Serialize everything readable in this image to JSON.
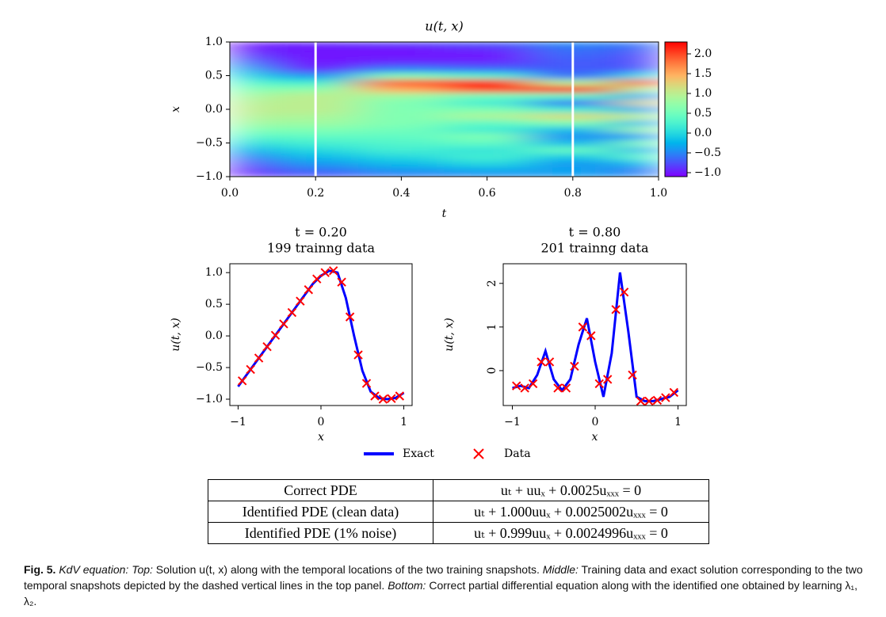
{
  "chart_data": [
    {
      "type": "heatmap",
      "title": "u(t, x)",
      "x_label": "t",
      "y_label": "x",
      "x": [
        0,
        0.2,
        0.4,
        0.6,
        0.8,
        1.0
      ],
      "y": [
        -1,
        -0.9,
        -0.8,
        -0.7,
        -0.6,
        -0.5,
        -0.4,
        -0.3,
        -0.2,
        -0.1,
        0,
        0.1,
        0.2,
        0.3,
        0.4,
        0.5,
        0.6,
        0.7,
        0.8,
        0.9,
        1
      ],
      "z": [
        [
          -1,
          -0.95,
          -0.81,
          -0.59,
          -0.31,
          0,
          0.31,
          0.59,
          0.81,
          0.95,
          1,
          0.95,
          0.81,
          0.59,
          0.31,
          0,
          -0.31,
          -0.59,
          -0.81,
          -0.95,
          -1
        ],
        [
          -0.8,
          -0.6,
          -0.4,
          -0.2,
          0,
          0.2,
          0.4,
          0.6,
          0.8,
          0.9,
          1.0,
          1.0,
          1.0,
          0.7,
          0.2,
          -0.4,
          -0.9,
          -1,
          -1,
          -1,
          -0.9
        ],
        [
          -0.6,
          -0.4,
          -0.2,
          0,
          0.2,
          0.3,
          0.4,
          0.5,
          0.6,
          0.6,
          0.6,
          0.6,
          0.8,
          1.5,
          1.9,
          0.6,
          -0.5,
          -0.9,
          -1,
          -1,
          -0.8
        ],
        [
          -0.5,
          -0.3,
          0,
          0.2,
          0.1,
          0.4,
          0.6,
          0.2,
          0.4,
          0.9,
          0.6,
          0.2,
          0.5,
          2.0,
          2.2,
          0.3,
          -0.6,
          -0.9,
          -1,
          -0.9,
          -0.7
        ],
        [
          -0.4,
          -0.35,
          -0.4,
          -0.1,
          0.45,
          -0.2,
          -0.45,
          -0.2,
          0.6,
          1.2,
          0.2,
          -0.6,
          0.4,
          2.25,
          0.9,
          -0.6,
          -0.7,
          -0.7,
          -0.65,
          -0.6,
          -0.45
        ],
        [
          -0.5,
          -0.6,
          -0.2,
          0.4,
          -0.3,
          0.6,
          -0.4,
          0.8,
          -0.3,
          0.9,
          -0.4,
          1.2,
          -0.4,
          0.8,
          2.3,
          0.1,
          -0.7,
          -0.8,
          -0.8,
          -0.7,
          -0.6
        ]
      ],
      "xlim": [
        0,
        1
      ],
      "ylim": [
        -1,
        1
      ],
      "xticks": [
        {
          "value": 0,
          "label": "0.0"
        },
        {
          "value": 0.2,
          "label": "0.2"
        },
        {
          "value": 0.4,
          "label": "0.4"
        },
        {
          "value": 0.6,
          "label": "0.6"
        },
        {
          "value": 0.8,
          "label": "0.8"
        },
        {
          "value": 1,
          "label": "1.0"
        }
      ],
      "yticks": [
        {
          "value": -1,
          "label": "−1.0"
        },
        {
          "value": -0.5,
          "label": "−0.5"
        },
        {
          "value": 0,
          "label": "0.0"
        },
        {
          "value": 0.5,
          "label": "0.5"
        },
        {
          "value": 1,
          "label": "1.0"
        }
      ],
      "colormap": "rainbow",
      "clim": [
        -1.1,
        2.3
      ],
      "colorbar_ticks": [
        {
          "value": -1,
          "label": "−1.0"
        },
        {
          "value": -0.5,
          "label": "−0.5"
        },
        {
          "value": 0,
          "label": "0.0"
        },
        {
          "value": 0.5,
          "label": "0.5"
        },
        {
          "value": 1,
          "label": "1.0"
        },
        {
          "value": 1.5,
          "label": "1.5"
        },
        {
          "value": 2,
          "label": "2.0"
        }
      ],
      "vlines": [
        0.2,
        0.8
      ],
      "vline_color": "#ffffff"
    },
    {
      "type": "line",
      "title": "t = 0.20",
      "subtitle": "199 trainng data",
      "x_label": "x",
      "y_label": "u(t, x)",
      "x": [
        -1,
        -0.9,
        -0.8,
        -0.7,
        -0.6,
        -0.5,
        -0.4,
        -0.3,
        -0.2,
        -0.1,
        0,
        0.1,
        0.2,
        0.3,
        0.4,
        0.5,
        0.6,
        0.7,
        0.8,
        0.9,
        1
      ],
      "series": [
        {
          "name": "Exact",
          "color": "#0000ff",
          "values": [
            -0.8,
            -0.62,
            -0.44,
            -0.26,
            -0.08,
            0.1,
            0.28,
            0.46,
            0.64,
            0.82,
            0.95,
            1.03,
            1.0,
            0.6,
            0.0,
            -0.55,
            -0.88,
            -0.98,
            -1.0,
            -0.98,
            -0.9
          ]
        },
        {
          "name": "Data",
          "color": "#ff0000",
          "marker": "x",
          "x": [
            -0.95,
            -0.85,
            -0.75,
            -0.65,
            -0.55,
            -0.45,
            -0.35,
            -0.25,
            -0.15,
            -0.05,
            0.05,
            0.15,
            0.25,
            0.35,
            0.45,
            0.55,
            0.65,
            0.75,
            0.85,
            0.95
          ],
          "values": [
            -0.71,
            -0.53,
            -0.35,
            -0.17,
            0.01,
            0.19,
            0.37,
            0.55,
            0.73,
            0.9,
            1.0,
            1.03,
            0.85,
            0.3,
            -0.3,
            -0.75,
            -0.95,
            -1.0,
            -0.99,
            -0.95
          ]
        }
      ],
      "xlim": [
        -1.1,
        1.1
      ],
      "ylim": [
        -1.1,
        1.14
      ],
      "xticks": [
        {
          "value": -1,
          "label": "−1"
        },
        0,
        1
      ],
      "yticks": [
        {
          "value": -1,
          "label": "−1.0"
        },
        {
          "value": -0.5,
          "label": "−0.5"
        },
        {
          "value": 0,
          "label": "0.0"
        },
        {
          "value": 0.5,
          "label": "0.5"
        },
        {
          "value": 1,
          "label": "1.0"
        }
      ],
      "legend": "bottom"
    },
    {
      "type": "line",
      "title": "t = 0.80",
      "subtitle": "201 trainng data",
      "x_label": "x",
      "y_label": "u(t, x)",
      "x": [
        -1,
        -0.9,
        -0.8,
        -0.7,
        -0.6,
        -0.5,
        -0.4,
        -0.3,
        -0.2,
        -0.1,
        0,
        0.1,
        0.2,
        0.3,
        0.4,
        0.5,
        0.6,
        0.7,
        0.8,
        0.9,
        1
      ],
      "series": [
        {
          "name": "Exact",
          "color": "#0000ff",
          "values": [
            -0.4,
            -0.35,
            -0.4,
            -0.1,
            0.45,
            -0.2,
            -0.45,
            -0.2,
            0.6,
            1.2,
            0.2,
            -0.6,
            0.4,
            2.25,
            0.9,
            -0.6,
            -0.7,
            -0.7,
            -0.65,
            -0.6,
            -0.45
          ]
        },
        {
          "name": "Data",
          "color": "#ff0000",
          "marker": "x",
          "x": [
            -0.95,
            -0.85,
            -0.75,
            -0.65,
            -0.55,
            -0.45,
            -0.35,
            -0.25,
            -0.15,
            -0.05,
            0.05,
            0.15,
            0.25,
            0.35,
            0.45,
            0.55,
            0.65,
            0.75,
            0.85,
            0.95
          ],
          "values": [
            -0.35,
            -0.4,
            -0.3,
            0.2,
            0.2,
            -0.4,
            -0.4,
            0.1,
            1.0,
            0.8,
            -0.3,
            -0.2,
            1.4,
            1.8,
            -0.1,
            -0.7,
            -0.7,
            -0.68,
            -0.62,
            -0.5
          ]
        }
      ],
      "xlim": [
        -1.11,
        1.1
      ],
      "ylim": [
        -0.8,
        2.45
      ],
      "xticks": [
        {
          "value": -1,
          "label": "−1"
        },
        0,
        1
      ],
      "yticks": [
        0,
        1,
        2
      ]
    }
  ],
  "table": {
    "rows": [
      [
        "Correct PDE",
        "uₜ + uuₓ + 0.0025uₓₓₓ = 0"
      ],
      [
        "Identified PDE (clean data)",
        "uₜ + 1.000uuₓ + 0.0025002uₓₓₓ = 0"
      ],
      [
        "Identified PDE (1% noise)",
        "uₜ + 0.999uuₓ + 0.0024996uₓₓₓ = 0"
      ]
    ]
  },
  "caption": {
    "label": "Fig. 5.",
    "text": [
      "KdV equation: Top:",
      " Solution u(t, x) along with the temporal locations of the two training snapshots. ",
      "Middle:",
      " Training data and exact solution corresponding to the two temporal snapshots depicted by the dashed vertical lines in the top panel. ",
      "Bottom:",
      " Correct partial differential equation along with the identified one obtained by learning λ₁, λ₂."
    ]
  }
}
